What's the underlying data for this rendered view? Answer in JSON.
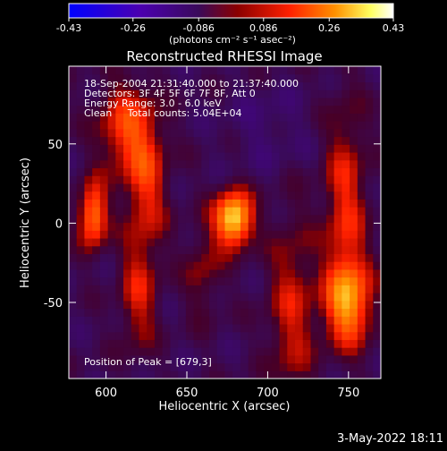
{
  "chart_data": {
    "type": "heatmap",
    "title": "Reconstructed RHESSI Image",
    "xlabel": "Heliocentric X (arcsec)",
    "ylabel": "Heliocentric Y (arcsec)",
    "xlim": [
      577,
      770
    ],
    "ylim": [
      -98,
      99
    ],
    "xticks": [
      600,
      650,
      700,
      750
    ],
    "yticks": [
      50,
      0,
      -50
    ],
    "colorbar": {
      "min": -0.43,
      "max": 0.43,
      "ticks": [
        "-0.43",
        "-0.26",
        "-0.086",
        "0.086",
        "0.26",
        "0.43"
      ],
      "unit_label": "(photons cm⁻² s⁻¹ asec⁻²)",
      "colors": [
        "#0000ff",
        "#4b00aa",
        "#5a2a82",
        "#3a0a5a",
        "#8b0000",
        "#ff2000",
        "#ff9000",
        "#ffff60",
        "#ffffff"
      ]
    },
    "annotations": [
      "18-Sep-2004 21:31:40.000 to 21:37:40.000",
      "Detectors: 3F 4F 5F 6F 7F 8F, Att 0",
      "Energy Range: 3.0 - 6.0 keV",
      "Clean     Total counts: 5.04E+04"
    ],
    "peak_label": "Position of Peak = [679,3]",
    "peak_position": [
      679,
      3
    ],
    "sources": [
      {
        "x": 679,
        "y": 3,
        "sx": 8,
        "sy": 12,
        "amp": 0.43
      },
      {
        "x": 592,
        "y": 5,
        "sx": 6,
        "sy": 14,
        "amp": 0.3
      },
      {
        "x": 612,
        "y": 60,
        "sx": 12,
        "sy": 20,
        "amp": 0.2
      },
      {
        "x": 625,
        "y": 25,
        "sx": 9,
        "sy": 28,
        "amp": 0.18
      },
      {
        "x": 620,
        "y": -45,
        "sx": 8,
        "sy": 25,
        "amp": 0.15
      },
      {
        "x": 750,
        "y": -50,
        "sx": 10,
        "sy": 18,
        "amp": 0.3
      },
      {
        "x": 748,
        "y": 10,
        "sx": 9,
        "sy": 45,
        "amp": 0.18
      },
      {
        "x": 715,
        "y": -55,
        "sx": 10,
        "sy": 40,
        "amp": 0.15
      },
      {
        "x": 660,
        "y": -30,
        "sx": 8,
        "sy": 20,
        "amp": 0.1
      },
      {
        "x": 700,
        "y": 60,
        "sx": 18,
        "sy": 18,
        "amp": -0.05
      }
    ]
  },
  "date_stamp": "3-May-2022 18:11"
}
